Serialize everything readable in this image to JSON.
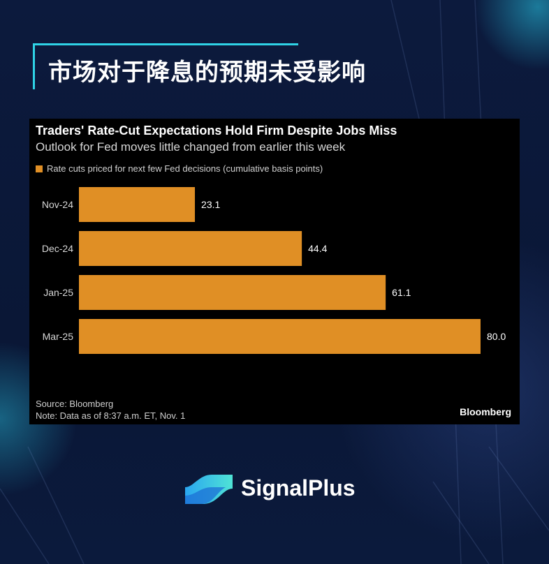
{
  "header": {
    "title": "市场对于降息的预期未受影响"
  },
  "chart_data": {
    "type": "bar",
    "orientation": "horizontal",
    "title": "Traders' Rate-Cut Expectations Hold Firm Despite Jobs Miss",
    "subtitle": "Outlook for Fed moves little changed from earlier this week",
    "categories": [
      "Nov-24",
      "Dec-24",
      "Jan-25",
      "Mar-25"
    ],
    "series": [
      {
        "name": "Rate cuts priced for next few Fed decisions (cumulative basis points)",
        "values": [
          23.1,
          44.4,
          61.1,
          80.0
        ],
        "labels": [
          "23.1",
          "44.4",
          "61.1",
          "80.0"
        ],
        "color": "#e08f25"
      }
    ],
    "xlim": [
      0,
      80
    ],
    "grid": false,
    "legend_position": "top-left"
  },
  "footer": {
    "source": "Source: Bloomberg",
    "note": "Note: Data as of 8:37 a.m. ET, Nov. 1",
    "brand": "Bloomberg"
  },
  "logo": {
    "name": "SignalPlus"
  },
  "colors": {
    "accent": "#2fd3e6",
    "bar": "#e08f25",
    "background": "#0b1838",
    "card": "#000000"
  }
}
